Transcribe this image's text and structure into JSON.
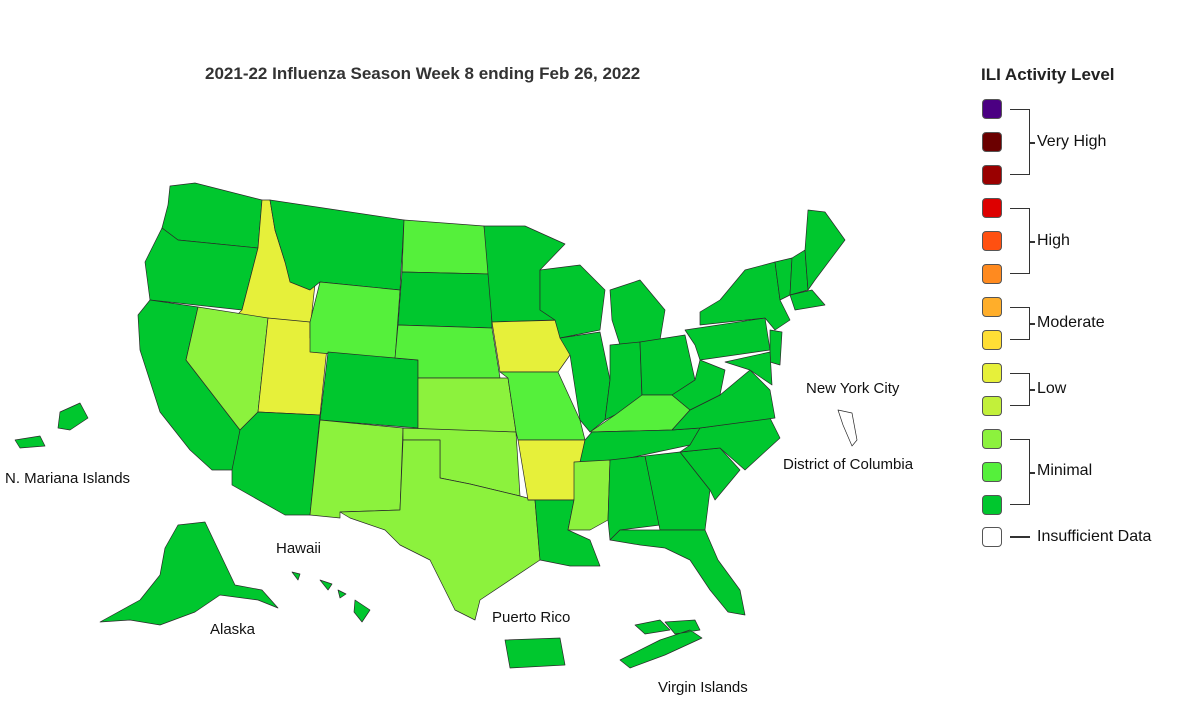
{
  "title": "2021-22 Influenza Season Week 8 ending Feb 26, 2022",
  "legend": {
    "title": "ILI Activity Level",
    "levels": [
      {
        "color": "#4b0082"
      },
      {
        "color": "#6b0000"
      },
      {
        "color": "#9a0000"
      },
      {
        "color": "#dd0000"
      },
      {
        "color": "#ff5011"
      },
      {
        "color": "#ff8a1f"
      },
      {
        "color": "#ffae2a"
      },
      {
        "color": "#ffde35"
      },
      {
        "color": "#e6f03a"
      },
      {
        "color": "#c2f03a"
      },
      {
        "color": "#8cf23d"
      },
      {
        "color": "#55f03b"
      },
      {
        "color": "#00c72e"
      },
      {
        "color": "#ffffff"
      }
    ],
    "groups": {
      "very_high": "Very High",
      "high": "High",
      "moderate": "Moderate",
      "low": "Low",
      "minimal": "Minimal",
      "insufficient": "Insufficient Data"
    }
  },
  "region_labels": {
    "new_york_city": "New York City",
    "district_of_columbia": "District of Columbia",
    "n_mariana_islands": "N. Mariana Islands",
    "hawaii": "Hawaii",
    "alaska": "Alaska",
    "puerto_rico": "Puerto Rico",
    "virgin_islands": "Virgin Islands"
  },
  "state_levels": {
    "WA": "minimal-dark",
    "OR": "minimal-dark",
    "CA": "minimal-dark",
    "ID": "low",
    "NV": "minimal-light",
    "UT": "low",
    "AZ": "minimal-dark",
    "MT": "minimal-dark",
    "WY": "minimal-mid",
    "CO": "minimal-dark",
    "NM": "minimal-light",
    "ND": "minimal-mid",
    "SD": "minimal-dark",
    "NE": "minimal-mid",
    "KS": "minimal-light",
    "OK": "minimal-light",
    "TX": "minimal-light",
    "MN": "minimal-dark",
    "IA": "low",
    "MO": "minimal-mid",
    "AR": "low",
    "LA": "minimal-dark",
    "WI": "minimal-dark",
    "IL": "minimal-dark",
    "MI": "minimal-dark",
    "IN": "minimal-dark",
    "OH": "minimal-dark",
    "KY": "minimal-mid",
    "TN": "minimal-dark",
    "MS": "minimal-light",
    "AL": "minimal-dark",
    "GA": "minimal-dark",
    "FL": "minimal-dark",
    "SC": "minimal-dark",
    "NC": "minimal-dark",
    "VA": "minimal-dark",
    "WV": "minimal-dark",
    "PA": "minimal-dark",
    "NY": "minimal-dark",
    "VT": "minimal-dark",
    "NH": "minimal-dark",
    "ME": "minimal-dark",
    "MA": "minimal-dark",
    "NJ": "minimal-dark",
    "MD": "minimal-dark",
    "AK": "minimal-dark",
    "HI": "minimal-dark",
    "PR": "minimal-dark",
    "VI": "minimal-dark",
    "MP": "minimal-dark",
    "NYC": "insufficient"
  }
}
